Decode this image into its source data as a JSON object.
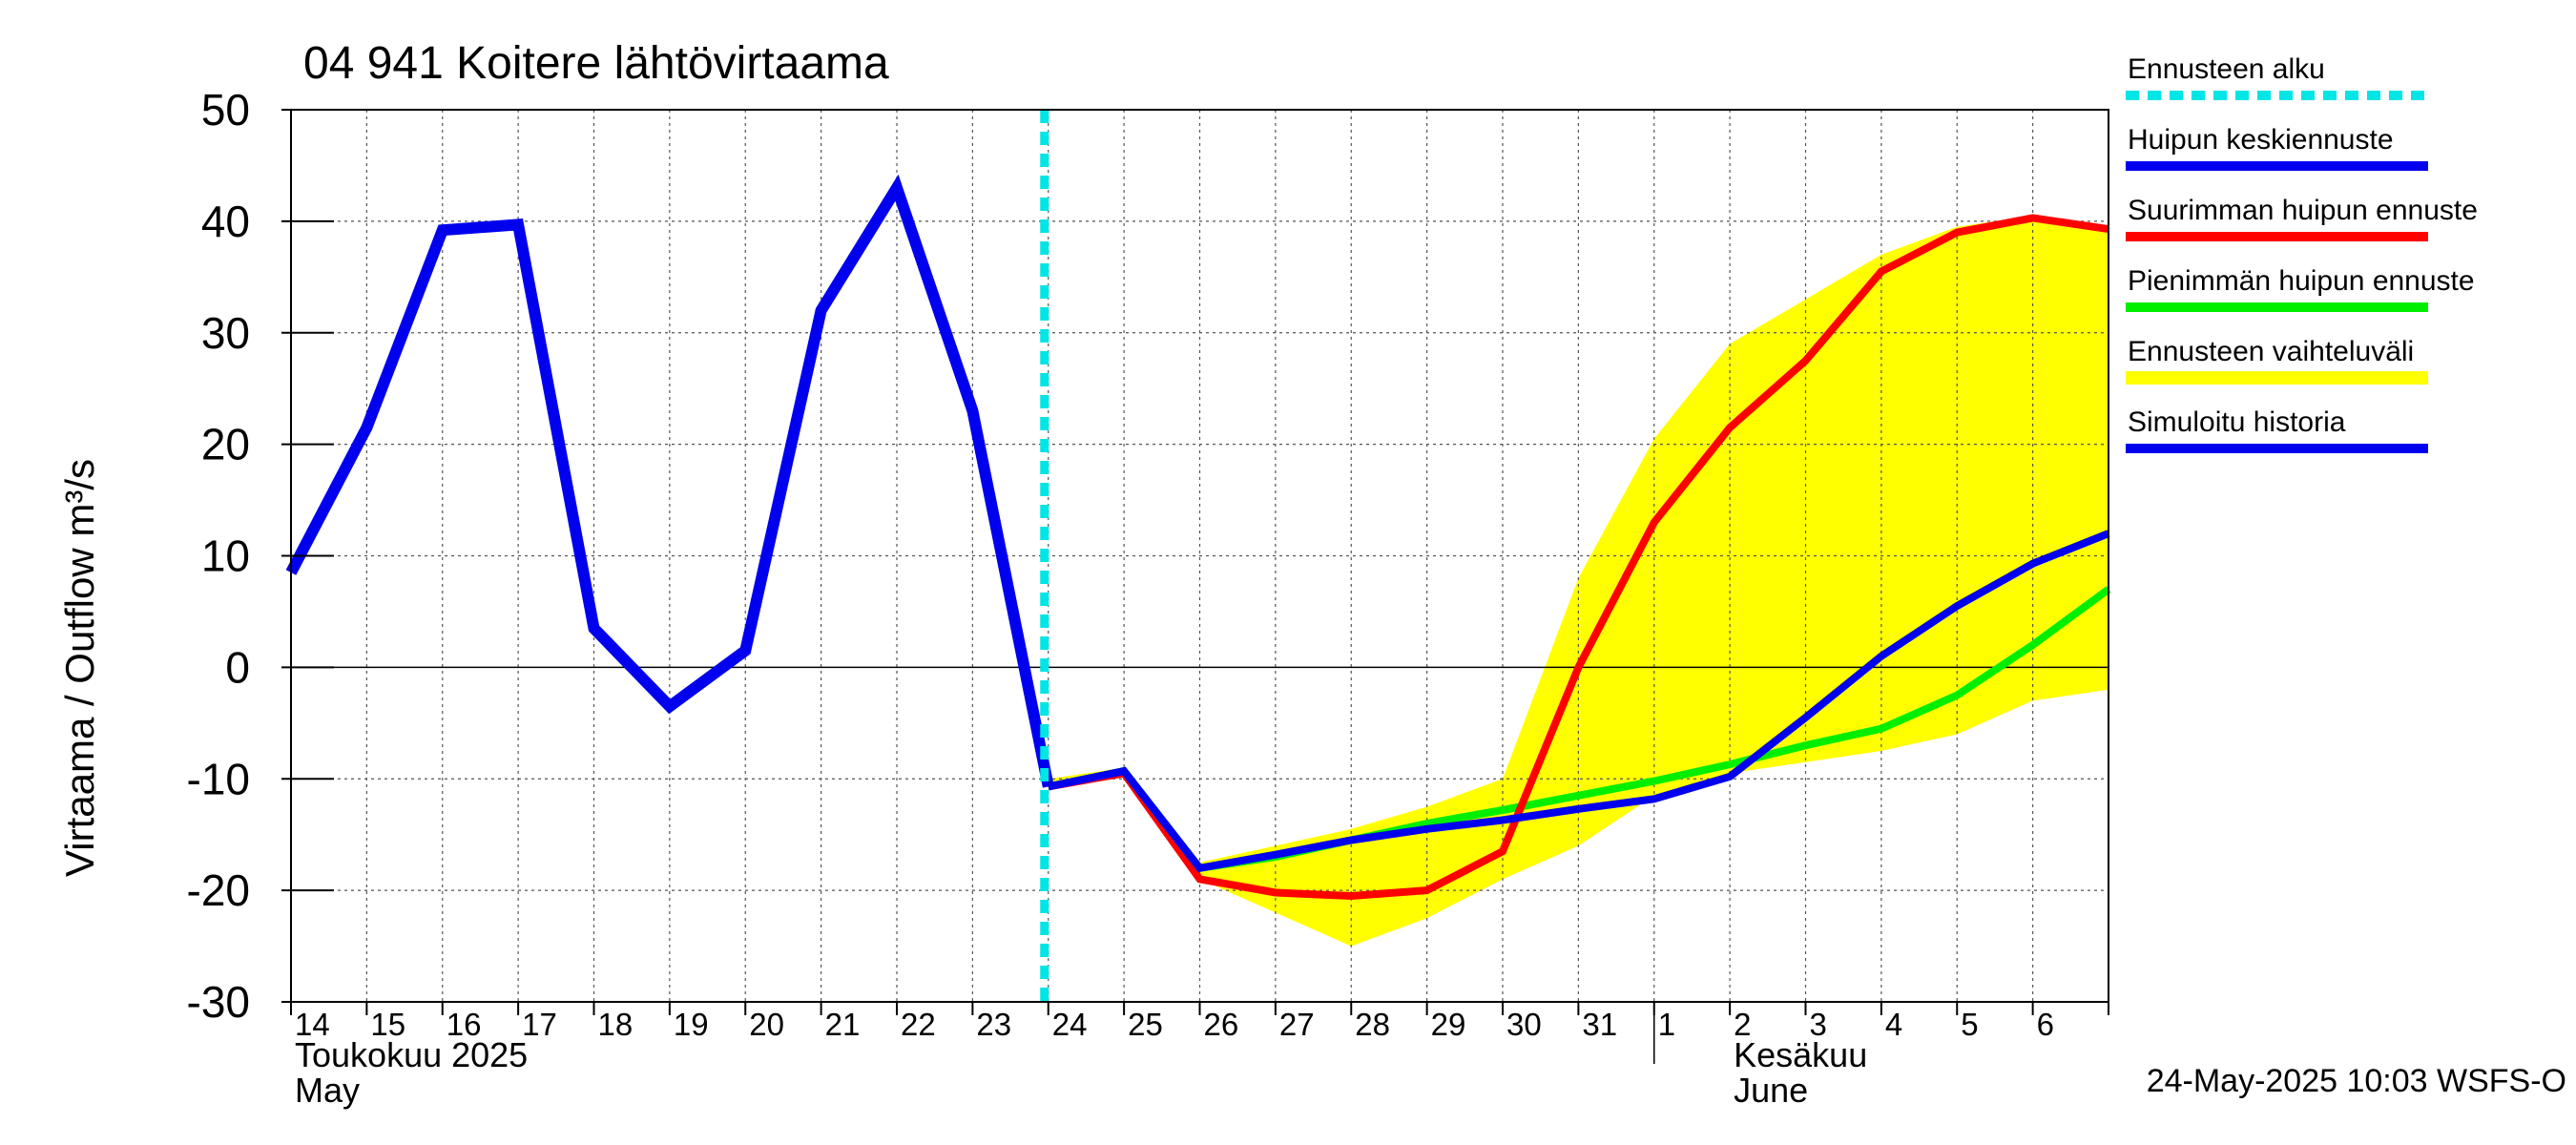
{
  "chart_data": {
    "type": "line",
    "title": "04 941 Koitere lähtövirtaama",
    "ylabel": "Virtaama / Outflow    m³/s",
    "ylim": [
      -30,
      50
    ],
    "yticks": [
      "50",
      "40",
      "30",
      "20",
      "10",
      "0",
      "-10",
      "-20",
      "-30"
    ],
    "xlim": [
      "2025-05-14",
      "2025-06-07"
    ],
    "day_labels": [
      "14",
      "15",
      "16",
      "17",
      "18",
      "19",
      "20",
      "21",
      "22",
      "23",
      "24",
      "25",
      "26",
      "27",
      "28",
      "29",
      "30",
      "31",
      "1",
      "2",
      "3",
      "4",
      "5",
      "6"
    ],
    "month_labels": [
      {
        "fi": "Toukokuu  2025",
        "en": "May",
        "at": "2025-05-14"
      },
      {
        "fi": "Kesäkuu",
        "en": "June",
        "at": "2025-06-02"
      }
    ],
    "forecast_start": "2025-05-24",
    "grid": true,
    "legend_position": "right",
    "legend": [
      {
        "label": "Ennusteen alku",
        "color": "#00e5e5",
        "style": "dashed"
      },
      {
        "label": "Huipun keskiennuste",
        "color": "#0000ee",
        "style": "solid"
      },
      {
        "label": "Suurimman huipun ennuste",
        "color": "#ff0000",
        "style": "solid"
      },
      {
        "label": "Pienimmän huipun ennuste",
        "color": "#00ee00",
        "style": "solid"
      },
      {
        "label": "Ennusteen vaihteluväli",
        "color": "#ffff00",
        "style": "band"
      },
      {
        "label": "Simuloitu historia",
        "color": "#0000ee",
        "style": "solid"
      }
    ],
    "range_band": {
      "name": "Ennusteen vaihteluväli",
      "color": "#ffff00",
      "x": [
        "2025-05-24",
        "2025-05-25",
        "2025-05-26",
        "2025-05-27",
        "2025-05-28",
        "2025-05-29",
        "2025-05-30",
        "2025-05-31",
        "2025-06-01",
        "2025-06-02",
        "2025-06-03",
        "2025-06-04",
        "2025-06-05",
        "2025-06-06",
        "2025-06-07"
      ],
      "upper": [
        -10,
        -9,
        -17.5,
        -16,
        -14.5,
        -12.5,
        -10,
        8,
        20.5,
        29,
        33,
        37,
        39.5,
        40.5,
        39.5
      ],
      "lower": [
        -11,
        -9.8,
        -19,
        -22,
        -25,
        -22.5,
        -19,
        -16,
        -11.5,
        -9.5,
        -8.5,
        -7.5,
        -6,
        -3,
        -2
      ]
    },
    "series": [
      {
        "name": "Simuloitu historia",
        "color": "#0000ee",
        "x": [
          "2025-05-14",
          "2025-05-15",
          "2025-05-16",
          "2025-05-17",
          "2025-05-18",
          "2025-05-19",
          "2025-05-20",
          "2025-05-21",
          "2025-05-22",
          "2025-05-23",
          "2025-05-24"
        ],
        "y": [
          8.5,
          21.5,
          39.2,
          39.7,
          3.5,
          -3.5,
          1.5,
          32,
          43,
          23,
          -10.7
        ]
      },
      {
        "name": "Pienimmän huipun ennuste",
        "color": "#00ee00",
        "x": [
          "2025-05-24",
          "2025-05-25",
          "2025-05-26",
          "2025-05-27",
          "2025-05-28",
          "2025-05-29",
          "2025-05-30",
          "2025-05-31",
          "2025-06-01",
          "2025-06-02",
          "2025-06-03",
          "2025-06-04",
          "2025-06-05",
          "2025-06-06",
          "2025-06-07"
        ],
        "y": [
          -10.7,
          -9.3,
          -18,
          -17,
          -15.5,
          -14,
          -12.8,
          -11.5,
          -10.2,
          -8.7,
          -7,
          -5.5,
          -2.5,
          2,
          7
        ]
      },
      {
        "name": "Suurimman huipun ennuste",
        "color": "#ff0000",
        "x": [
          "2025-05-24",
          "2025-05-25",
          "2025-05-26",
          "2025-05-27",
          "2025-05-28",
          "2025-05-29",
          "2025-05-30",
          "2025-05-31",
          "2025-06-01",
          "2025-06-02",
          "2025-06-03",
          "2025-06-04",
          "2025-06-05",
          "2025-06-06",
          "2025-06-07"
        ],
        "y": [
          -10.7,
          -9.5,
          -19,
          -20.2,
          -20.5,
          -20,
          -16.5,
          0,
          13,
          21.5,
          27.5,
          35.5,
          39,
          40.3,
          39.3
        ]
      },
      {
        "name": "Huipun keskiennuste",
        "color": "#0000ee",
        "x": [
          "2025-05-24",
          "2025-05-25",
          "2025-05-26",
          "2025-05-27",
          "2025-05-28",
          "2025-05-29",
          "2025-05-30",
          "2025-05-31",
          "2025-06-01",
          "2025-06-02",
          "2025-06-03",
          "2025-06-04",
          "2025-06-05",
          "2025-06-06",
          "2025-06-07"
        ],
        "y": [
          -10.7,
          -9.3,
          -18,
          -16.8,
          -15.5,
          -14.5,
          -13.7,
          -12.7,
          -11.8,
          -9.8,
          -4.5,
          1,
          5.5,
          9.3,
          12
        ]
      }
    ],
    "footer": "24-May-2025 10:03 WSFS-O"
  }
}
